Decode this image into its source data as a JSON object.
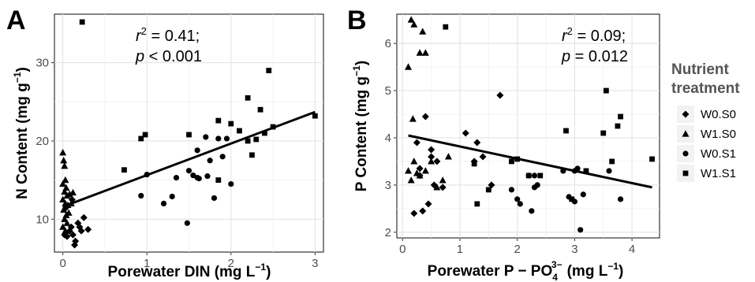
{
  "chart_data": [
    {
      "panel": "A",
      "type": "scatter",
      "xlabel_main": "Porewater DIN ",
      "xlabel_unit_open": "(mg L",
      "xlabel_unit_exp": "−1",
      "xlabel_unit_close": ")",
      "ylabel_main": "N Content ",
      "ylabel_unit_open": "(mg g",
      "ylabel_unit_exp": "−1",
      "ylabel_unit_close": ")",
      "xlim": [
        -0.1,
        3.1
      ],
      "ylim": [
        5.8,
        36.2
      ],
      "x_ticks": [
        0,
        1,
        2,
        3
      ],
      "y_ticks": [
        10,
        20,
        30
      ],
      "grid": true,
      "stat_r2_label": "r",
      "stat_r2_exp": "2",
      "stat_r2_value": " = 0.41;",
      "stat_p_label": "p",
      "stat_p_value": " < 0.001",
      "fit_line": {
        "x": [
          0.0,
          3.0
        ],
        "y": [
          11.6,
          23.7
        ]
      },
      "series": [
        {
          "name": "W0.S0",
          "marker": "diamond",
          "points": [
            [
              0.02,
              8.0
            ],
            [
              0.05,
              7.8
            ],
            [
              0.08,
              8.5
            ],
            [
              0.1,
              9.0
            ],
            [
              0.12,
              8.0
            ],
            [
              0.15,
              7.2
            ],
            [
              0.18,
              9.5
            ],
            [
              0.2,
              9.0
            ],
            [
              0.22,
              8.5
            ],
            [
              0.25,
              10.2
            ],
            [
              0.3,
              8.7
            ],
            [
              0.14,
              6.7
            ],
            [
              0.04,
              11.5
            ],
            [
              0.11,
              12.5
            ]
          ]
        },
        {
          "name": "W1.S0",
          "marker": "triangle",
          "points": [
            [
              0.0,
              18.5
            ],
            [
              0.01,
              17.5
            ],
            [
              0.02,
              16.8
            ],
            [
              0.03,
              15.0
            ],
            [
              0.0,
              14.5
            ],
            [
              0.04,
              14.0
            ],
            [
              0.02,
              13.5
            ],
            [
              0.05,
              13.0
            ],
            [
              0.0,
              12.5
            ],
            [
              0.03,
              12.0
            ],
            [
              0.06,
              11.8
            ],
            [
              0.01,
              11.2
            ],
            [
              0.04,
              10.5
            ],
            [
              0.02,
              10.0
            ],
            [
              0.05,
              9.5
            ],
            [
              0.0,
              9.0
            ],
            [
              0.03,
              8.5
            ],
            [
              0.08,
              13.2
            ],
            [
              0.1,
              12.0
            ],
            [
              0.12,
              13.4
            ],
            [
              0.07,
              10.8
            ]
          ]
        },
        {
          "name": "W0.S1",
          "marker": "circle",
          "points": [
            [
              0.93,
              13.0
            ],
            [
              1.0,
              15.7
            ],
            [
              1.2,
              12.0
            ],
            [
              1.3,
              12.9
            ],
            [
              1.35,
              15.3
            ],
            [
              1.5,
              16.2
            ],
            [
              1.48,
              9.5
            ],
            [
              1.55,
              15.6
            ],
            [
              1.6,
              18.8
            ],
            [
              1.62,
              15.2
            ],
            [
              1.7,
              20.5
            ],
            [
              1.72,
              15.5
            ],
            [
              1.75,
              17.5
            ],
            [
              1.8,
              12.7
            ],
            [
              1.85,
              20.3
            ],
            [
              1.9,
              18.0
            ],
            [
              1.95,
              20.3
            ],
            [
              2.0,
              14.5
            ],
            [
              1.6,
              15.3
            ]
          ]
        },
        {
          "name": "W1.S1",
          "marker": "square",
          "points": [
            [
              0.23,
              35.2
            ],
            [
              0.73,
              16.3
            ],
            [
              0.93,
              20.3
            ],
            [
              0.98,
              20.8
            ],
            [
              1.5,
              20.8
            ],
            [
              1.85,
              22.6
            ],
            [
              2.0,
              22.2
            ],
            [
              2.1,
              21.3
            ],
            [
              2.2,
              25.5
            ],
            [
              2.2,
              20.0
            ],
            [
              2.25,
              18.2
            ],
            [
              2.3,
              20.2
            ],
            [
              2.35,
              24.0
            ],
            [
              2.4,
              21.0
            ],
            [
              2.45,
              29.0
            ],
            [
              2.5,
              21.8
            ],
            [
              3.0,
              23.2
            ],
            [
              1.85,
              15.0
            ]
          ]
        }
      ]
    },
    {
      "panel": "B",
      "type": "scatter",
      "xlabel_main": "Porewater P − PO",
      "xlabel_sub": "4",
      "xlabel_sup": "3−",
      "xlabel_unit_open": "(mg L",
      "xlabel_unit_exp": "−1",
      "xlabel_unit_close": ")",
      "ylabel_main": "P Content ",
      "ylabel_unit_open": "(mg g",
      "ylabel_unit_exp": "−1",
      "ylabel_unit_close": ")",
      "xlim": [
        -0.1,
        4.48
      ],
      "ylim": [
        1.88,
        6.62
      ],
      "x_ticks": [
        0,
        1,
        2,
        3,
        4
      ],
      "y_ticks": [
        2,
        3,
        4,
        5,
        6
      ],
      "grid": true,
      "stat_r2_label": "r",
      "stat_r2_exp": "2",
      "stat_r2_value": " = 0.09;",
      "stat_p_label": "p",
      "stat_p_value": " = 0.012",
      "fit_line": {
        "x": [
          0.1,
          4.35
        ],
        "y": [
          4.05,
          2.95
        ]
      },
      "series": [
        {
          "name": "W0.S0",
          "marker": "diamond",
          "points": [
            [
              0.25,
              3.9
            ],
            [
              0.3,
              3.2
            ],
            [
              0.4,
              4.45
            ],
            [
              0.5,
              3.6
            ],
            [
              0.55,
              3.0
            ],
            [
              0.6,
              3.5
            ],
            [
              0.35,
              2.45
            ],
            [
              0.45,
              2.6
            ],
            [
              0.2,
              2.4
            ],
            [
              1.1,
              4.1
            ],
            [
              1.25,
              3.5
            ],
            [
              1.3,
              3.9
            ],
            [
              1.4,
              3.6
            ],
            [
              1.55,
              3.0
            ],
            [
              1.7,
              4.9
            ],
            [
              0.5,
              3.75
            ],
            [
              0.7,
              2.95
            ],
            [
              0.3,
              3.35
            ]
          ]
        },
        {
          "name": "W1.S0",
          "marker": "triangle",
          "points": [
            [
              0.1,
              5.5
            ],
            [
              0.15,
              6.5
            ],
            [
              0.2,
              6.4
            ],
            [
              0.3,
              5.8
            ],
            [
              0.35,
              6.25
            ],
            [
              0.4,
              5.8
            ],
            [
              0.1,
              3.3
            ],
            [
              0.15,
              3.1
            ],
            [
              0.2,
              3.5
            ],
            [
              0.3,
              3.2
            ],
            [
              0.4,
              3.3
            ],
            [
              0.5,
              3.5
            ],
            [
              0.6,
              2.95
            ],
            [
              0.7,
              3.1
            ],
            [
              0.8,
              3.6
            ],
            [
              0.18,
              4.4
            ],
            [
              0.25,
              3.25
            ]
          ]
        },
        {
          "name": "W0.S1",
          "marker": "circle",
          "points": [
            [
              1.9,
              2.9
            ],
            [
              2.0,
              2.7
            ],
            [
              2.05,
              2.6
            ],
            [
              2.2,
              3.2
            ],
            [
              2.25,
              2.45
            ],
            [
              2.3,
              3.2
            ],
            [
              2.35,
              3.0
            ],
            [
              2.8,
              3.3
            ],
            [
              2.9,
              2.75
            ],
            [
              3.0,
              2.65
            ],
            [
              3.0,
              3.3
            ],
            [
              3.05,
              3.35
            ],
            [
              3.1,
              2.05
            ],
            [
              3.15,
              2.8
            ],
            [
              3.6,
              3.3
            ],
            [
              3.8,
              2.7
            ],
            [
              2.3,
              2.95
            ]
          ]
        },
        {
          "name": "W1.S1",
          "marker": "square",
          "points": [
            [
              0.75,
              6.35
            ],
            [
              1.25,
              3.45
            ],
            [
              1.3,
              2.6
            ],
            [
              1.5,
              2.9
            ],
            [
              1.9,
              3.5
            ],
            [
              2.0,
              3.55
            ],
            [
              2.2,
              3.2
            ],
            [
              2.4,
              3.2
            ],
            [
              2.85,
              4.15
            ],
            [
              2.95,
              2.7
            ],
            [
              3.2,
              3.3
            ],
            [
              3.5,
              4.1
            ],
            [
              3.55,
              5.0
            ],
            [
              3.65,
              3.5
            ],
            [
              3.75,
              4.25
            ],
            [
              3.8,
              4.45
            ],
            [
              4.35,
              3.55
            ]
          ]
        }
      ]
    }
  ],
  "legend": {
    "title_line1": "Nutrient",
    "title_line2": "treatment",
    "items": [
      {
        "label": "W0.S0",
        "marker": "diamond"
      },
      {
        "label": "W1.S0",
        "marker": "triangle"
      },
      {
        "label": "W0.S1",
        "marker": "circle"
      },
      {
        "label": "W1.S1",
        "marker": "square"
      }
    ],
    "position": "right"
  }
}
